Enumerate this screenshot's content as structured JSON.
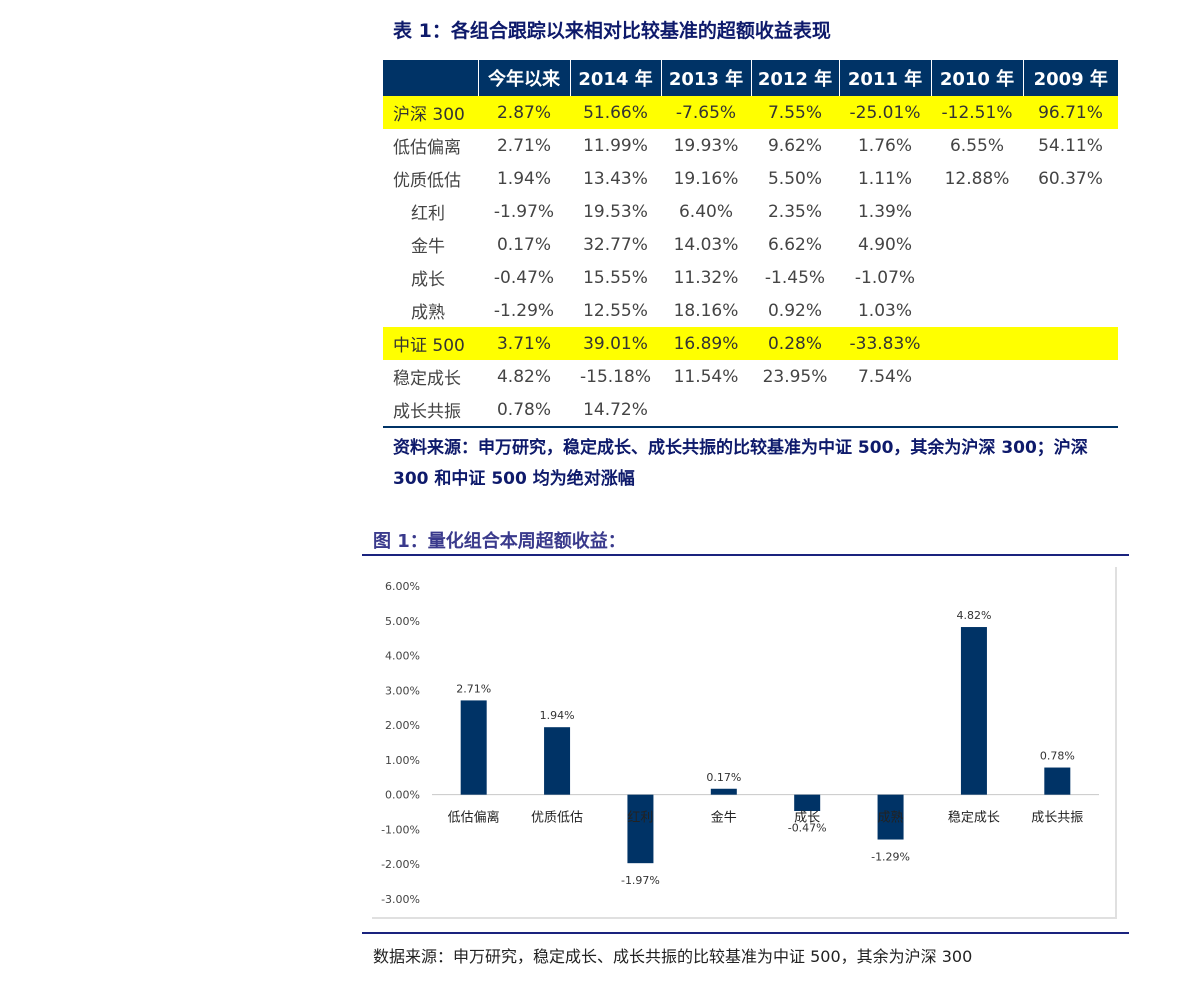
{
  "table": {
    "title": "表 1：各组合跟踪以来相对比较基准的超额收益表现",
    "headers": [
      "",
      "今年以来",
      "2014 年",
      "2013 年",
      "2012 年",
      "2011 年",
      "2010 年",
      "2009 年"
    ],
    "rows": [
      {
        "name": "沪深 300",
        "highlight": true,
        "indent": false,
        "values": [
          "2.87%",
          "51.66%",
          "-7.65%",
          "7.55%",
          "-25.01%",
          "-12.51%",
          "96.71%"
        ]
      },
      {
        "name": "低估偏离",
        "highlight": false,
        "indent": false,
        "values": [
          "2.71%",
          "11.99%",
          "19.93%",
          "9.62%",
          "1.76%",
          "6.55%",
          "54.11%"
        ]
      },
      {
        "name": "优质低估",
        "highlight": false,
        "indent": false,
        "values": [
          "1.94%",
          "13.43%",
          "19.16%",
          "5.50%",
          "1.11%",
          "12.88%",
          "60.37%"
        ]
      },
      {
        "name": "红利",
        "highlight": false,
        "indent": true,
        "values": [
          "-1.97%",
          "19.53%",
          "6.40%",
          "2.35%",
          "1.39%",
          "",
          ""
        ]
      },
      {
        "name": "金牛",
        "highlight": false,
        "indent": true,
        "values": [
          "0.17%",
          "32.77%",
          "14.03%",
          "6.62%",
          "4.90%",
          "",
          ""
        ]
      },
      {
        "name": "成长",
        "highlight": false,
        "indent": true,
        "values": [
          "-0.47%",
          "15.55%",
          "11.32%",
          "-1.45%",
          "-1.07%",
          "",
          ""
        ]
      },
      {
        "name": "成熟",
        "highlight": false,
        "indent": true,
        "values": [
          "-1.29%",
          "12.55%",
          "18.16%",
          "0.92%",
          "1.03%",
          "",
          ""
        ]
      },
      {
        "name": "中证 500",
        "highlight": true,
        "indent": false,
        "values": [
          "3.71%",
          "39.01%",
          "16.89%",
          "0.28%",
          "-33.83%",
          "",
          ""
        ]
      },
      {
        "name": "稳定成长",
        "highlight": false,
        "indent": false,
        "values": [
          "4.82%",
          "-15.18%",
          "11.54%",
          "23.95%",
          "7.54%",
          "",
          ""
        ]
      },
      {
        "name": "成长共振",
        "highlight": false,
        "indent": false,
        "values": [
          "0.78%",
          "14.72%",
          "",
          "",
          "",
          "",
          ""
        ]
      }
    ],
    "source": "资料来源：申万研究，稳定成长、成长共振的比较基准为中证 500，其余为沪深 300；沪深 300 和中证 500 均为绝对涨幅"
  },
  "figure": {
    "title": "图 1：量化组合本周超额收益：",
    "source": "数据来源：申万研究，稳定成长、成长共振的比较基准为中证 500，其余为沪深 300"
  },
  "chart_data": {
    "type": "bar",
    "categories": [
      "低估偏离",
      "优质低估",
      "红利",
      "金牛",
      "成长",
      "成熟",
      "稳定成长",
      "成长共振"
    ],
    "values": [
      2.71,
      1.94,
      -1.97,
      0.17,
      -0.47,
      -1.29,
      4.82,
      0.78
    ],
    "value_labels": [
      "2.71%",
      "1.94%",
      "-1.97%",
      "0.17%",
      "-0.47%",
      "-1.29%",
      "4.82%",
      "0.78%"
    ],
    "ylim": [
      -3,
      6
    ],
    "yticks": [
      "6.00%",
      "5.00%",
      "4.00%",
      "3.00%",
      "2.00%",
      "1.00%",
      "0.00%",
      "-1.00%",
      "-2.00%",
      "-3.00%"
    ],
    "ytick_values": [
      6,
      5,
      4,
      3,
      2,
      1,
      0,
      -1,
      -2,
      -3
    ],
    "bar_color": "#003366",
    "grid": false,
    "legend": "none"
  }
}
